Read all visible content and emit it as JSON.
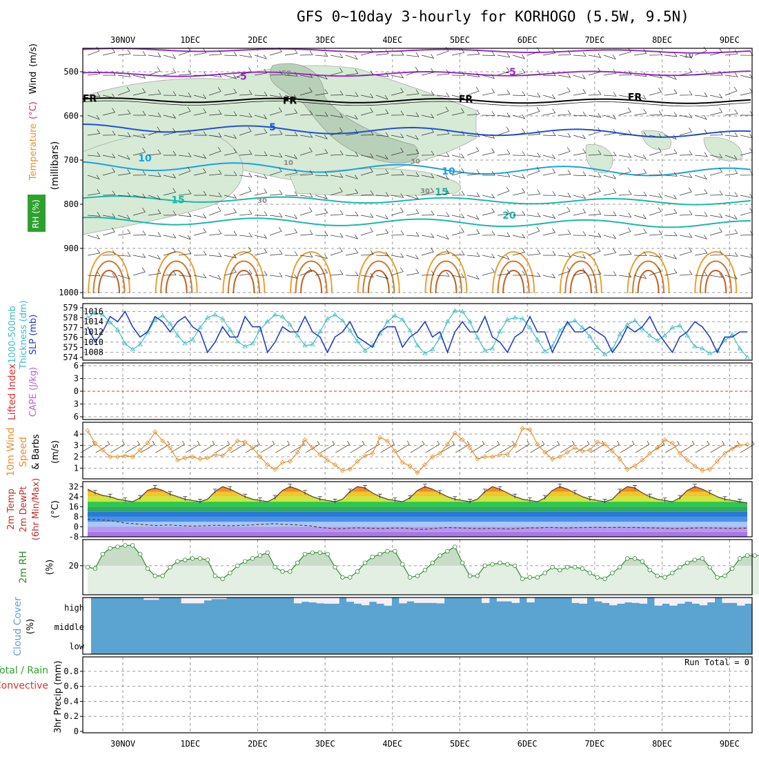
{
  "title": "GFS 0~10day 3-hourly for KORHOGO (5.5W, 9.5N)",
  "dates": [
    "30NOV",
    "1DEC",
    "2DEC",
    "3DEC",
    "4DEC",
    "5DEC",
    "6DEC",
    "7DEC",
    "8DEC",
    "9DEC"
  ],
  "colors": {
    "rh": "#2e8b2e",
    "slp": "#1f3fbf",
    "thk": "#3cbcc8",
    "li": "#e03030",
    "cape": "#c060d0",
    "wind": "#e8902a",
    "temp": "#c0302a",
    "cloud": "#5ba3d0",
    "precip": "#2ea02e"
  },
  "chart_data": [
    {
      "type": "heatmap",
      "panel": "upper-air",
      "ylabel_parts": [
        "RH (%)",
        "Temperature",
        "(°C)",
        "Wind",
        "(m/s)",
        "(millibars)"
      ],
      "yticks": [
        500,
        600,
        700,
        800,
        900,
        1000
      ],
      "ylim": [
        1000,
        450
      ],
      "contour_labels": [
        {
          "text": "FR",
          "level": 560
        },
        {
          "text": "FR",
          "level": 565
        },
        {
          "text": "FR",
          "level": 562
        },
        {
          "text": "FR",
          "level": 557
        },
        {
          "text": "-5",
          "level": 510
        },
        {
          "text": "-5",
          "level": 500
        },
        {
          "text": "5",
          "level": 625
        },
        {
          "text": "10",
          "level": 695
        },
        {
          "text": "10",
          "level": 725
        },
        {
          "text": "15",
          "level": 790
        },
        {
          "text": "15",
          "level": 772
        },
        {
          "text": "20",
          "level": 825
        },
        {
          "text": "10",
          "level": 460
        },
        {
          "text": "50",
          "level": 500
        },
        {
          "text": "10",
          "level": 703
        },
        {
          "text": "30",
          "level": 700
        },
        {
          "text": "30",
          "level": 789
        },
        {
          "text": "30",
          "level": 767
        }
      ],
      "grid": true
    },
    {
      "type": "line",
      "panel": "thickness-slp",
      "ylabel_parts": [
        "1000-500mb",
        "Thickness (dm)",
        "SLP (mb)"
      ],
      "left_ticks": [
        574,
        575,
        576,
        577,
        578,
        579
      ],
      "right_ticks": [
        1008,
        1010,
        1012,
        1014,
        1016
      ],
      "series": [
        {
          "name": "SLP (mb)",
          "axis": "right",
          "values": [
            1013,
            1010,
            1012,
            1015,
            1014,
            1016,
            1013,
            1011,
            1012,
            1015,
            1014,
            1012,
            1014,
            1015,
            1013,
            1012,
            1008,
            1010,
            1013,
            1011,
            1011,
            1015,
            1013,
            1013,
            1008,
            1010,
            1013,
            1012,
            1012,
            1015,
            1012,
            1011,
            1008,
            1011,
            1012,
            1014,
            1011,
            1010,
            1009,
            1012,
            1013,
            1013,
            1009,
            1011,
            1012,
            1014,
            1011,
            1012,
            1008,
            1012,
            1014,
            1012,
            1012,
            1015,
            1011,
            1010,
            1008,
            1011,
            1012,
            1015,
            1012,
            1012,
            1008,
            1011,
            1014,
            1012,
            1012,
            1013,
            1012,
            1011,
            1008,
            1010,
            1013,
            1012,
            1013,
            1015,
            1012,
            1010,
            1008,
            1011,
            1012,
            1014,
            1013,
            1011,
            1008,
            1011,
            1011,
            1012,
            1012
          ]
        },
        {
          "name": "Thickness (dm)",
          "axis": "left",
          "values": [
            578,
            578.5,
            578.3,
            577.5,
            576.8,
            575.4,
            574.8,
            575.3,
            576.5,
            577.8,
            578.2,
            577.4,
            576.2,
            575.4,
            575.8,
            577.0,
            578.0,
            578.3,
            577.9,
            576.8,
            575.6,
            575.1,
            575.4,
            576.8,
            577.6,
            578.3,
            578.1,
            577.3,
            576.2,
            575.2,
            575.3,
            576.6,
            577.9,
            578.3,
            577.7,
            576.7,
            575.6,
            574.7,
            575.2,
            576.4,
            577.6,
            578.2,
            577.8,
            576.7,
            575.2,
            574.4,
            574.8,
            576.0,
            577.6,
            578.7,
            578.6,
            577.6,
            576.0,
            574.7,
            574.9,
            576.6,
            577.8,
            578.0,
            577.9,
            577.0,
            575.8,
            574.6,
            575.1,
            576.7,
            577.4,
            577.7,
            577.0,
            576.1,
            575.0,
            574.3,
            574.8,
            576.3,
            577.3,
            577.7,
            576.9,
            576.2,
            575.7,
            576.2,
            577.0,
            577.2,
            576.2,
            575.1,
            574.9,
            574.4,
            574.7,
            575.7,
            576.3,
            574.9,
            574.0
          ]
        }
      ],
      "grid": true
    },
    {
      "type": "line",
      "panel": "lifted-index-cape",
      "ylabel_parts": [
        "Lifted Index",
        "CAPE (J/kg)"
      ],
      "yticks": [
        "6",
        "3",
        "0",
        "3",
        "6"
      ],
      "ylim": [
        -6,
        6
      ],
      "zero_line": true
    },
    {
      "type": "line",
      "panel": "10m-wind",
      "ylabel_parts": [
        "10m Wind",
        "Speed",
        "& Barbs",
        "(m/s)"
      ],
      "yticks": [
        1,
        2,
        3,
        4
      ],
      "ylim": [
        0.3,
        4.8
      ],
      "series": [
        {
          "name": "10m Wind Speed",
          "values": [
            4.3,
            3.2,
            2.6,
            2.0,
            2.0,
            2.1,
            2.0,
            2.6,
            3.2,
            4.2,
            3.4,
            2.8,
            1.7,
            1.9,
            2.0,
            1.8,
            1.9,
            2.2,
            2.1,
            2.7,
            3.4,
            3.3,
            2.8,
            2.0,
            1.3,
            0.9,
            1.5,
            1.6,
            2.4,
            3.5,
            2.8,
            2.2,
            1.7,
            1.3,
            0.8,
            0.9,
            1.6,
            2.1,
            2.3,
            3.7,
            3.4,
            2.5,
            1.5,
            1.2,
            0.6,
            1.3,
            2.0,
            2.3,
            3.1,
            4.1,
            3.5,
            2.8,
            1.8,
            2.0,
            2.0,
            2.2,
            2.2,
            3.0,
            4.5,
            4.4,
            3.1,
            2.4,
            1.8,
            2.0,
            2.4,
            2.8,
            2.5,
            2.6,
            3.3,
            3.1,
            2.5,
            1.8,
            0.9,
            1.2,
            1.7,
            2.3,
            2.8,
            3.5,
            3.2,
            2.3,
            1.7,
            1.2,
            0.8,
            0.9,
            1.6,
            2.3,
            2.7,
            3.0,
            3.1
          ]
        }
      ],
      "grid": true
    },
    {
      "type": "area",
      "panel": "2m-temperature",
      "ylabel_parts": [
        "2m Temp",
        "2m DewPt",
        "(6hr Min/Max)",
        "(°C)"
      ],
      "yticks": [
        "32",
        "24",
        "16",
        "8",
        "0",
        "-8"
      ],
      "ylim": [
        -8,
        36
      ],
      "series": [
        {
          "name": "2m Temp",
          "values": [
            30,
            27,
            25,
            24,
            22,
            21,
            20,
            23,
            29,
            31,
            29,
            26,
            24,
            22,
            21,
            20,
            22,
            28,
            32,
            30,
            27,
            24,
            22,
            21,
            20,
            23,
            29,
            32,
            30,
            27,
            24,
            22,
            21,
            20,
            22,
            28,
            32,
            31,
            27,
            24,
            22,
            21,
            20,
            23,
            29,
            32,
            30,
            27,
            24,
            22,
            21,
            20,
            22,
            28,
            32,
            30,
            27,
            24,
            22,
            21,
            20,
            23,
            29,
            32,
            30,
            27,
            24,
            22,
            21,
            20,
            22,
            28,
            32,
            31,
            27,
            24,
            22,
            21,
            20,
            23,
            29,
            32,
            30,
            27,
            24,
            22,
            21,
            20,
            19
          ]
        },
        {
          "name": "2m DewPt",
          "values": [
            6,
            5.8,
            5.4,
            5,
            4,
            3,
            2.5,
            2,
            1.5,
            1,
            1.2,
            1.5,
            1,
            0.8,
            0.5,
            0.7,
            0.9,
            1.2,
            1,
            0.8,
            1,
            1.2,
            1.5,
            2,
            2.2,
            2.5,
            2,
            1.8,
            1.5,
            1,
            0.5,
            -0.5,
            -1,
            -1.5,
            -1.5,
            -1,
            -0.8,
            -1,
            -1.2,
            -1.5,
            -1.2,
            -1,
            -1,
            -1.5,
            -2,
            -2,
            -1.5,
            -1,
            -0.5,
            -0.8,
            -1,
            -1.2,
            -1.5,
            -1.4,
            -1.3,
            -1.5,
            -1.8,
            -1.5,
            -1.2,
            -0.8,
            -0.9,
            -0.6,
            -0.5,
            -0.8,
            -0.9,
            -0.7,
            -0.6,
            -0.5,
            -0.4,
            -0.6,
            -0.5,
            -0.4,
            -0.6,
            -0.5,
            -0.7,
            -0.8,
            -1,
            -1.2,
            -1.5,
            -1.4,
            -1.2,
            -1,
            -0.8,
            -0.9,
            -1,
            -1.2,
            -1.5,
            -1.2,
            -1
          ]
        }
      ],
      "grid": true
    },
    {
      "type": "area",
      "panel": "2m-rh",
      "ylabel_parts": [
        "2m RH",
        "(%)"
      ],
      "yticks": [
        20
      ],
      "ylim": [
        0,
        38
      ],
      "series": [
        {
          "name": "2m RH",
          "values": [
            19,
            18,
            28,
            32,
            33,
            34,
            34,
            28,
            18,
            13,
            13,
            19,
            23,
            24,
            25,
            25,
            24,
            13,
            11,
            15,
            20,
            23,
            25,
            27,
            29,
            19,
            16,
            16,
            22,
            28,
            29,
            29,
            28,
            19,
            12,
            12,
            16,
            22,
            26,
            28,
            30,
            30,
            21,
            12,
            13,
            17,
            22,
            27,
            30,
            33,
            22,
            13,
            13,
            20,
            21,
            22,
            21,
            20,
            11,
            12,
            12,
            15,
            19,
            17,
            19,
            19,
            18,
            15,
            12,
            11,
            15,
            19,
            25,
            25,
            23,
            17,
            13,
            12,
            15,
            19,
            22,
            24,
            25,
            19,
            12,
            13,
            18,
            25,
            27,
            27,
            27,
            29
          ]
        }
      ],
      "grid": true
    },
    {
      "type": "heatmap",
      "panel": "cloud-cover",
      "ylabel_parts": [
        "Cloud Cover",
        "(%)"
      ],
      "rows": [
        "high",
        "middle",
        "low"
      ],
      "high_cover": [
        1,
        1,
        1,
        1,
        1,
        1,
        1,
        0.88,
        0.88,
        1,
        1,
        1,
        0.7,
        0.7,
        0.7,
        0.85,
        0.92,
        0.92,
        1,
        1,
        1,
        1,
        1,
        1,
        1,
        1,
        1,
        0.7,
        0.78,
        0.75,
        0.7,
        0.68,
        0.68,
        1,
        0.78,
        0.68,
        0.6,
        0.78,
        0.68,
        0.58,
        1,
        0.7,
        0.8,
        0.72,
        0.72,
        0.72,
        0.7,
        1,
        1,
        1,
        1,
        1,
        0.72,
        1,
        0.8,
        0.8,
        0.72,
        1,
        0.75,
        1,
        1,
        1,
        1,
        1,
        0.72,
        0.68,
        1,
        0.8,
        0.72,
        0.6,
        0.68,
        0.75,
        0.72,
        0.68,
        1,
        0.58,
        0.68,
        0.58,
        0.68,
        0.78,
        0.68,
        0.6,
        0.75,
        1,
        0.72,
        0.72,
        0.58,
        0.68
      ]
    },
    {
      "type": "bar",
      "panel": "precipitation",
      "ylabel_parts": [
        "Total / Rain",
        "Convective",
        "3hr Precip (mm)"
      ],
      "yticks": [
        "0",
        "0.2",
        "0.4",
        "0.6",
        "0.8"
      ],
      "ylim": [
        0,
        0.95
      ],
      "annotation": "Run Total = 0",
      "values": [],
      "grid": true
    }
  ]
}
